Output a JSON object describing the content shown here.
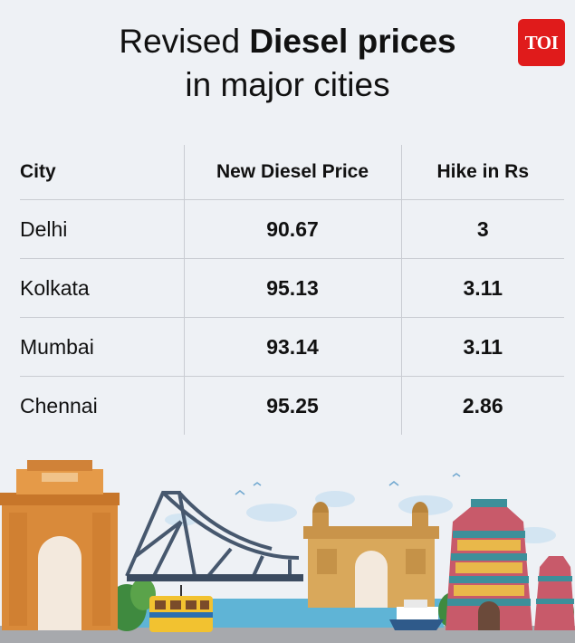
{
  "title": {
    "line1_regular": "Revised ",
    "line1_bold": "Diesel prices",
    "line2": "in major cities"
  },
  "logo": {
    "text": "TOI",
    "color": "#e01b1b"
  },
  "table": {
    "headers": [
      "City",
      "New Diesel Price",
      "Hike in Rs"
    ],
    "rows": [
      {
        "city": "Delhi",
        "price": "90.67",
        "hike": "3"
      },
      {
        "city": "Kolkata",
        "price": "95.13",
        "hike": "3.11"
      },
      {
        "city": "Mumbai",
        "price": "93.14",
        "hike": "3.11"
      },
      {
        "city": "Chennai",
        "price": "95.25",
        "hike": "2.86"
      }
    ]
  },
  "illustration": {
    "items": [
      "india-gate",
      "howrah-bridge",
      "tram",
      "gateway-of-india",
      "ferry-boat",
      "gopuram-temple"
    ]
  },
  "colors": {
    "background": "#eef1f5",
    "grid": "#c9ccd2",
    "text": "#111111"
  }
}
